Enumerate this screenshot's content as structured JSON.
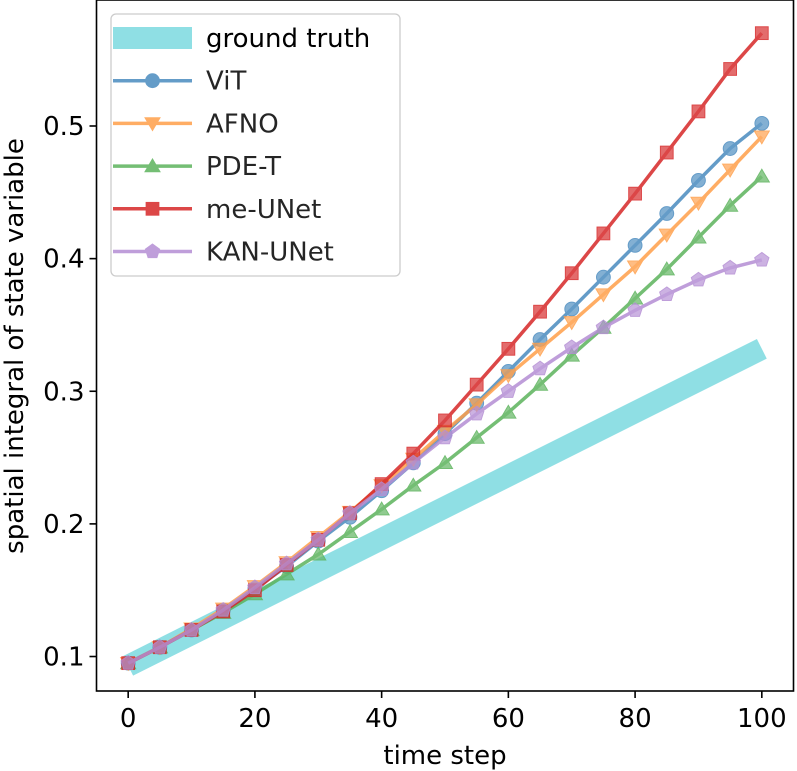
{
  "chart_data": {
    "type": "line",
    "title": "",
    "xlabel": "time step",
    "ylabel": "spatial integral of state variable",
    "xlim": [
      -5,
      105
    ],
    "ylim": [
      0.074,
      0.595
    ],
    "xticks": [
      0,
      20,
      40,
      60,
      80,
      100
    ],
    "yticks": [
      0.1,
      0.2,
      0.3,
      0.4,
      0.5
    ],
    "grid": false,
    "legend_position": "top-left",
    "series": [
      {
        "name": "ground truth",
        "color": "#8fdfe4",
        "marker": "none",
        "style": "thick",
        "x": [
          0,
          100
        ],
        "y": [
          0.093,
          0.332
        ]
      },
      {
        "name": "ViT",
        "color": "#4a8bbf",
        "marker": "circle",
        "x": [
          0,
          5,
          10,
          15,
          20,
          25,
          30,
          35,
          40,
          45,
          50,
          55,
          60,
          65,
          70,
          75,
          80,
          85,
          90,
          95,
          100
        ],
        "y": [
          0.095,
          0.107,
          0.12,
          0.135,
          0.151,
          0.168,
          0.187,
          0.205,
          0.225,
          0.246,
          0.268,
          0.291,
          0.315,
          0.339,
          0.362,
          0.386,
          0.41,
          0.434,
          0.459,
          0.483,
          0.502
        ]
      },
      {
        "name": "AFNO",
        "color": "#ff9f4a",
        "marker": "triangle-down",
        "x": [
          0,
          5,
          10,
          15,
          20,
          25,
          30,
          35,
          40,
          45,
          50,
          55,
          60,
          65,
          70,
          75,
          80,
          85,
          90,
          95,
          100
        ],
        "y": [
          0.095,
          0.107,
          0.121,
          0.136,
          0.153,
          0.171,
          0.19,
          0.209,
          0.229,
          0.249,
          0.27,
          0.29,
          0.312,
          0.332,
          0.352,
          0.373,
          0.394,
          0.418,
          0.442,
          0.467,
          0.492
        ]
      },
      {
        "name": "PDE-T",
        "color": "#5cb35c",
        "marker": "triangle-up",
        "x": [
          0,
          5,
          10,
          15,
          20,
          25,
          30,
          35,
          40,
          45,
          50,
          55,
          60,
          65,
          70,
          75,
          80,
          85,
          90,
          95,
          100
        ],
        "y": [
          0.095,
          0.107,
          0.12,
          0.133,
          0.147,
          0.162,
          0.177,
          0.194,
          0.211,
          0.229,
          0.246,
          0.265,
          0.284,
          0.305,
          0.327,
          0.348,
          0.37,
          0.392,
          0.416,
          0.44,
          0.462
        ]
      },
      {
        "name": "me-UNet",
        "color": "#d62728",
        "marker": "square",
        "x": [
          0,
          5,
          10,
          15,
          20,
          25,
          30,
          35,
          40,
          45,
          50,
          55,
          60,
          65,
          70,
          75,
          80,
          85,
          90,
          95,
          100
        ],
        "y": [
          0.095,
          0.107,
          0.12,
          0.134,
          0.15,
          0.169,
          0.188,
          0.208,
          0.23,
          0.253,
          0.278,
          0.305,
          0.332,
          0.36,
          0.389,
          0.419,
          0.449,
          0.48,
          0.511,
          0.543,
          0.57
        ]
      },
      {
        "name": "KAN-UNet",
        "color": "#b48ed4",
        "marker": "pentagon",
        "x": [
          0,
          5,
          10,
          15,
          20,
          25,
          30,
          35,
          40,
          45,
          50,
          55,
          60,
          65,
          70,
          75,
          80,
          85,
          90,
          95,
          100
        ],
        "y": [
          0.095,
          0.107,
          0.12,
          0.135,
          0.152,
          0.17,
          0.188,
          0.208,
          0.226,
          0.246,
          0.265,
          0.283,
          0.3,
          0.317,
          0.333,
          0.348,
          0.361,
          0.373,
          0.384,
          0.393,
          0.399
        ]
      }
    ]
  }
}
